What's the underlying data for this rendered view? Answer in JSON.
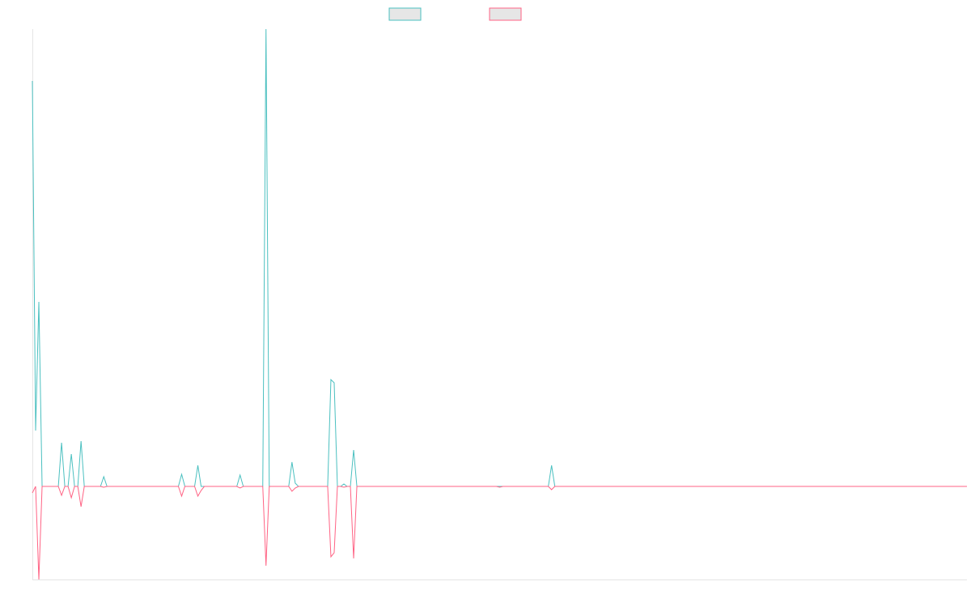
{
  "chart_data": {
    "type": "line",
    "xlim": [
      0,
      288
    ],
    "ylim": [
      -115,
      565
    ],
    "series": [
      {
        "color": "#4bc0c0",
        "values": [
          501,
          69,
          228,
          0,
          0,
          0,
          0,
          0,
          0,
          54,
          0,
          0,
          40,
          0,
          0,
          56,
          0,
          0,
          0,
          0,
          0,
          0,
          12,
          0,
          0,
          0,
          0,
          0,
          0,
          0,
          0,
          0,
          0,
          0,
          0,
          0,
          0,
          0,
          0,
          0,
          0,
          0,
          0,
          0,
          0,
          0,
          15,
          0,
          0,
          0,
          0,
          26,
          0,
          0,
          0,
          0,
          0,
          0,
          0,
          0,
          0,
          0,
          0,
          0,
          14,
          0,
          0,
          0,
          0,
          0,
          0,
          0,
          565,
          0,
          0,
          0,
          0,
          0,
          0,
          0,
          30,
          4,
          0,
          0,
          0,
          0,
          0,
          0,
          0,
          0,
          0,
          0,
          132,
          128,
          0,
          0,
          3,
          0,
          0,
          45,
          0,
          0,
          0,
          0,
          0,
          0,
          0,
          0,
          0,
          0,
          0,
          0,
          0,
          0,
          0,
          0,
          0,
          0,
          0,
          0,
          0,
          0,
          0,
          0,
          0,
          0,
          0,
          0,
          0,
          0,
          0,
          0,
          0,
          0,
          0,
          0,
          0,
          0,
          0,
          0,
          0,
          0,
          0,
          0,
          0,
          0,
          0,
          0,
          0,
          0,
          0,
          0,
          0,
          0,
          0,
          0,
          0,
          0,
          0,
          0,
          26,
          0,
          0,
          0,
          0,
          0,
          0,
          0,
          0,
          0,
          0,
          0,
          0,
          0,
          0,
          0,
          0,
          0,
          0,
          0,
          0,
          0,
          0,
          0,
          0,
          0,
          0,
          0,
          0,
          0,
          0,
          0,
          0,
          0,
          0,
          0,
          0,
          0,
          0,
          0,
          0,
          0,
          0,
          0,
          0,
          0,
          0,
          0,
          0,
          0,
          0,
          0,
          0,
          0,
          0,
          0,
          0,
          0,
          0,
          0,
          0,
          0,
          0,
          0,
          0,
          0,
          0,
          0,
          0,
          0,
          0,
          0,
          0,
          0,
          0,
          0,
          0,
          0,
          0,
          0,
          0,
          0,
          0,
          0,
          0,
          0,
          0,
          0,
          0,
          0,
          0,
          0,
          0,
          0,
          0,
          0,
          0,
          0,
          0,
          0,
          0,
          0,
          0,
          0,
          0,
          0,
          0,
          0,
          0,
          0,
          0,
          0,
          0,
          0,
          0,
          0,
          0,
          0,
          0,
          0,
          0,
          0,
          0,
          0,
          0,
          0,
          0,
          0,
          0
        ]
      },
      {
        "color": "#ff6384",
        "values": [
          -8,
          0,
          -115,
          0,
          0,
          0,
          0,
          0,
          0,
          -11,
          0,
          0,
          -14,
          0,
          0,
          -25,
          0,
          0,
          0,
          0,
          0,
          0,
          -1,
          0,
          0,
          0,
          0,
          0,
          0,
          0,
          0,
          0,
          0,
          0,
          0,
          0,
          0,
          0,
          0,
          0,
          0,
          0,
          0,
          0,
          0,
          0,
          -12,
          0,
          0,
          0,
          0,
          -12,
          -5,
          0,
          0,
          0,
          0,
          0,
          0,
          0,
          0,
          0,
          0,
          0,
          -2,
          0,
          0,
          0,
          0,
          0,
          0,
          0,
          -98,
          0,
          0,
          0,
          0,
          0,
          0,
          0,
          -6,
          -2,
          0,
          0,
          0,
          0,
          0,
          0,
          0,
          0,
          0,
          0,
          -87,
          -82,
          0,
          0,
          -1,
          0,
          0,
          -89,
          0,
          0,
          0,
          0,
          0,
          0,
          0,
          0,
          0,
          0,
          0,
          0,
          0,
          0,
          0,
          0,
          0,
          0,
          0,
          0,
          0,
          0,
          0,
          0,
          0,
          0,
          0,
          0,
          0,
          0,
          0,
          0,
          0,
          0,
          0,
          0,
          0,
          0,
          0,
          0,
          0,
          0,
          0,
          0,
          -1,
          0,
          0,
          0,
          0,
          0,
          0,
          0,
          0,
          0,
          0,
          0,
          0,
          0,
          0,
          0,
          -4,
          0,
          0,
          0,
          0,
          0,
          0,
          0,
          0,
          0,
          0,
          0,
          0,
          0,
          0,
          0,
          0,
          0,
          0,
          0,
          0,
          0,
          0,
          0,
          0,
          0,
          0,
          0,
          0,
          0,
          0,
          0,
          0,
          0,
          0,
          0,
          0,
          0,
          0,
          0,
          0,
          0,
          0,
          0,
          0,
          0,
          0,
          0,
          0,
          0,
          0,
          0,
          0,
          0,
          0,
          0,
          0,
          0,
          0,
          0,
          0,
          0,
          0,
          0,
          0,
          0,
          0,
          0,
          0,
          0,
          0,
          0,
          0,
          0,
          0,
          0,
          0,
          0,
          0,
          0,
          0,
          0,
          0,
          0,
          0,
          0,
          0,
          0,
          0,
          0,
          0,
          0,
          0,
          0,
          0,
          0,
          0,
          0,
          0,
          0,
          0,
          0,
          0,
          0,
          0,
          0,
          0,
          0,
          0,
          0,
          0,
          0,
          0,
          0,
          0,
          0,
          0,
          0,
          0,
          0,
          0,
          0,
          0,
          0,
          0,
          0,
          0,
          0,
          0
        ]
      }
    ]
  }
}
